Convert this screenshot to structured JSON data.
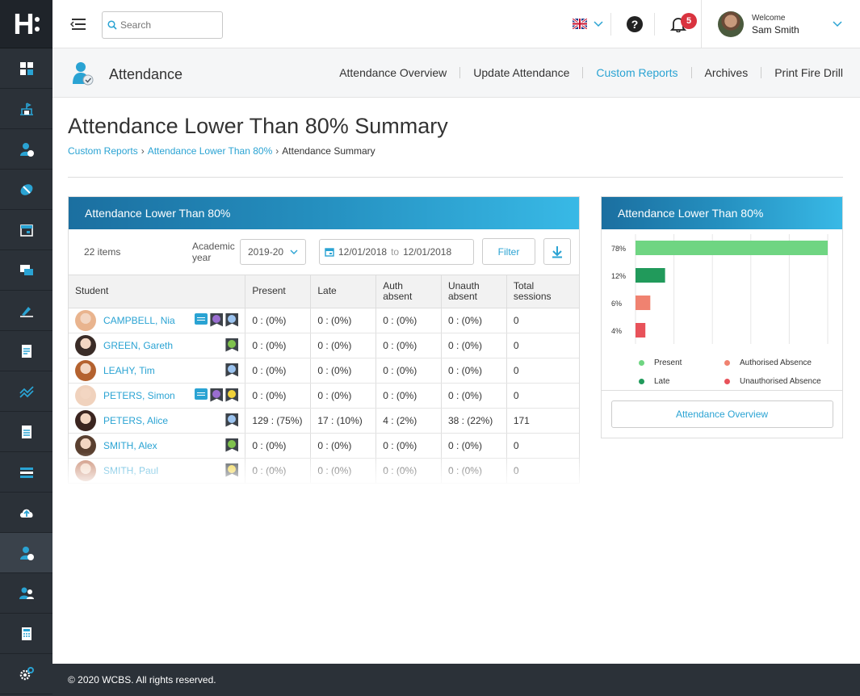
{
  "logo": {
    "text": "H"
  },
  "sidebar": {
    "items": [
      {
        "icon": "dashboard-icon",
        "active": false
      },
      {
        "icon": "school-icon",
        "active": false
      },
      {
        "icon": "student-icon",
        "active": false
      },
      {
        "icon": "medical-icon",
        "active": false
      },
      {
        "icon": "calendar-icon",
        "active": false
      },
      {
        "icon": "messages-icon",
        "active": false
      },
      {
        "icon": "assessment-icon",
        "active": false
      },
      {
        "icon": "document-icon",
        "active": false
      },
      {
        "icon": "analytics-icon",
        "active": false
      },
      {
        "icon": "report-icon",
        "active": false
      },
      {
        "icon": "timetable-icon",
        "active": false
      },
      {
        "icon": "cloud-upload-icon",
        "active": false
      },
      {
        "icon": "attendance-icon",
        "active": true
      },
      {
        "icon": "staff-icon",
        "active": false
      },
      {
        "icon": "calculator-icon",
        "active": false
      },
      {
        "icon": "settings-icon",
        "active": false
      }
    ]
  },
  "header": {
    "search_placeholder": "Search",
    "notifications_count": "5",
    "welcome": "Welcome",
    "user_name": "Sam Smith"
  },
  "subheader": {
    "title": "Attendance",
    "nav": [
      "Attendance Overview",
      "Update Attendance",
      "Custom Reports",
      "Archives",
      "Print Fire Drill"
    ],
    "active_nav": "Custom Reports"
  },
  "page": {
    "title": "Attendance Lower Than 80% Summary",
    "breadcrumbs": [
      "Custom Reports",
      "Attendance Lower Than 80%",
      "Attendance Summary"
    ]
  },
  "table_card": {
    "title": "Attendance Lower Than 80%",
    "items_count": "22 items",
    "academic_year_label": "Academic year",
    "academic_year": "2019-20",
    "date_from": "12/01/2018",
    "date_to_label": "to",
    "date_to": "12/01/2018",
    "filter_label": "Filter",
    "columns": [
      "Student",
      "Present",
      "Late",
      "Auth absent",
      "Unauth absent",
      "Total sessions"
    ],
    "rows": [
      {
        "name": "CAMPBELL, Nia",
        "present": "0 : (0%)",
        "late": "0 : (0%)",
        "auth": "0 : (0%)",
        "unauth": "0 : (0%)",
        "total": "0",
        "face": "#e9b48e",
        "flags": [
          "chat",
          "#9a6ed1",
          "#9bc3ef"
        ]
      },
      {
        "name": "GREEN, Gareth",
        "present": "0 : (0%)",
        "late": "0 : (0%)",
        "auth": "0 : (0%)",
        "unauth": "0 : (0%)",
        "total": "0",
        "face": "#3a2c27",
        "flags": [
          "#7fc24d"
        ]
      },
      {
        "name": "LEAHY, Tim",
        "present": "0 : (0%)",
        "late": "0 : (0%)",
        "auth": "0 : (0%)",
        "unauth": "0 : (0%)",
        "total": "0",
        "face": "#b4622f",
        "flags": [
          "#9bc3ef"
        ]
      },
      {
        "name": "PETERS, Simon",
        "present": "0 : (0%)",
        "late": "0 : (0%)",
        "auth": "0 : (0%)",
        "unauth": "0 : (0%)",
        "total": "0",
        "face": "#f0d2bd",
        "flags": [
          "chat",
          "#9a6ed1",
          "#f0d23a"
        ]
      },
      {
        "name": "PETERS, Alice",
        "present": "129 : (75%)",
        "late": "17 : (10%)",
        "auth": "4 : (2%)",
        "unauth": "38 : (22%)",
        "total": "171",
        "face": "#3b2520",
        "flags": [
          "#9bc3ef"
        ]
      },
      {
        "name": "SMITH, Alex",
        "present": "0 : (0%)",
        "late": "0 : (0%)",
        "auth": "0 : (0%)",
        "unauth": "0 : (0%)",
        "total": "0",
        "face": "#5a4030",
        "flags": [
          "#7fc24d"
        ]
      },
      {
        "name": "SMITH, Paul",
        "present": "0 : (0%)",
        "late": "0 : (0%)",
        "auth": "0 : (0%)",
        "unauth": "0 : (0%)",
        "total": "0",
        "face": "#c98a70",
        "flags": [
          "#f0d23a"
        ]
      }
    ]
  },
  "chart_card": {
    "title": "Attendance Lower Than 80%",
    "overview_button": "Attendance Overview"
  },
  "chart_data": {
    "type": "bar",
    "orientation": "horizontal",
    "categories": [
      "Present",
      "Late",
      "Authorised Absence",
      "Unauthorised Absence"
    ],
    "values": [
      78,
      12,
      6,
      4
    ],
    "value_labels": [
      "78%",
      "12%",
      "6%",
      "4%"
    ],
    "colors": [
      "#6fd582",
      "#219a5b",
      "#f08270",
      "#e8525a"
    ],
    "xlim": [
      0,
      78
    ],
    "grid": true,
    "legend": "bottom"
  },
  "footer": {
    "text": "© 2020 WCBS.  All rights reserved."
  },
  "colors": {
    "accent": "#2aa3d3",
    "sidebar": "#2b3138"
  }
}
